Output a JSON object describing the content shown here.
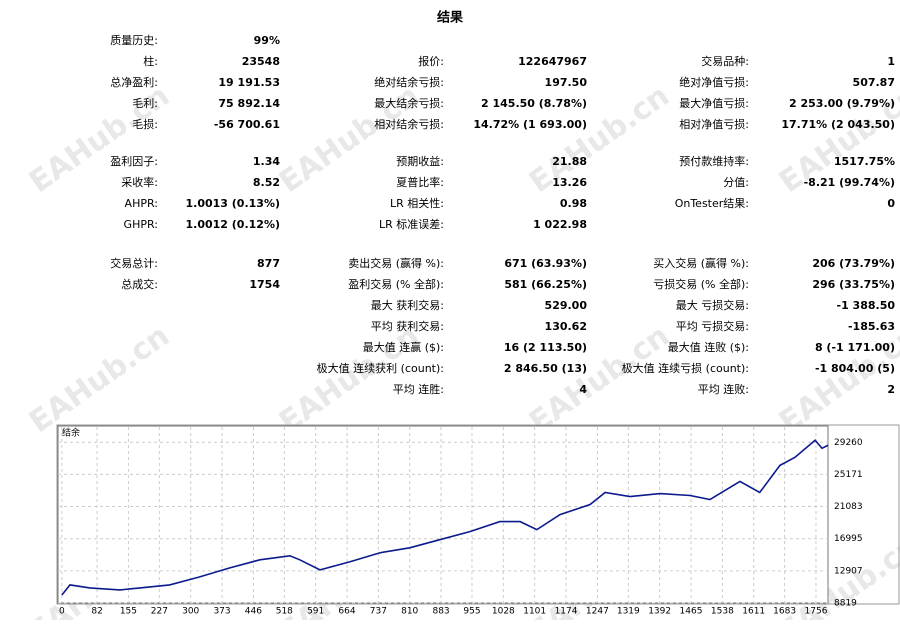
{
  "report": {
    "title": "结果",
    "watermark": "EAHub.cn",
    "sections": [
      {
        "rows": [
          [
            {
              "label": "质量历史:",
              "value": "99%"
            },
            null,
            null
          ],
          [
            {
              "label": "柱:",
              "value": "23548"
            },
            {
              "label": "报价:",
              "value": "122647967"
            },
            {
              "label": "交易品种:",
              "value": "1"
            }
          ],
          [
            {
              "label": "总净盈利:",
              "value": "19 191.53"
            },
            {
              "label": "绝对结余亏损:",
              "value": "197.50"
            },
            {
              "label": "绝对净值亏损:",
              "value": "507.87"
            }
          ],
          [
            {
              "label": "毛利:",
              "value": "75 892.14"
            },
            {
              "label": "最大结余亏损:",
              "value": "2 145.50 (8.78%)"
            },
            {
              "label": "最大净值亏损:",
              "value": "2 253.00 (9.79%)"
            }
          ],
          [
            {
              "label": "毛损:",
              "value": "-56 700.61"
            },
            {
              "label": "相对结余亏损:",
              "value": "14.72% (1 693.00)"
            },
            {
              "label": "相对净值亏损:",
              "value": "17.71% (2 043.50)"
            }
          ]
        ]
      },
      {
        "rows": [
          [
            {
              "label": "盈利因子:",
              "value": "1.34"
            },
            {
              "label": "预期收益:",
              "value": "21.88"
            },
            {
              "label": "预付款维持率:",
              "value": "1517.75%"
            }
          ],
          [
            {
              "label": "采收率:",
              "value": "8.52"
            },
            {
              "label": "夏普比率:",
              "value": "13.26"
            },
            {
              "label": "分值:",
              "value": "-8.21 (99.74%)"
            }
          ],
          [
            {
              "label": "AHPR:",
              "value": "1.0013 (0.13%)"
            },
            {
              "label": "LR 相关性:",
              "value": "0.98"
            },
            {
              "label": "OnTester结果:",
              "value": "0"
            }
          ],
          [
            {
              "label": "GHPR:",
              "value": "1.0012 (0.12%)"
            },
            {
              "label": "LR 标准误差:",
              "value": "1 022.98"
            },
            null
          ]
        ]
      },
      {
        "rows": [
          [
            {
              "label": "交易总计:",
              "value": "877"
            },
            {
              "label": "卖出交易 (赢得 %):",
              "value": "671 (63.93%)"
            },
            {
              "label": "买入交易 (赢得 %):",
              "value": "206 (73.79%)"
            }
          ],
          [
            {
              "label": "总成交:",
              "value": "1754"
            },
            {
              "label": "盈利交易 (% 全部):",
              "value": "581 (66.25%)"
            },
            {
              "label": "亏损交易 (% 全部):",
              "value": "296 (33.75%)"
            }
          ],
          [
            null,
            {
              "label": "最大 获利交易:",
              "value": "529.00"
            },
            {
              "label": "最大 亏损交易:",
              "value": "-1 388.50"
            }
          ],
          [
            null,
            {
              "label": "平均 获利交易:",
              "value": "130.62"
            },
            {
              "label": "平均 亏损交易:",
              "value": "-185.63"
            }
          ],
          [
            null,
            {
              "label": "最大值 连赢 ($):",
              "value": "16 (2 113.50)"
            },
            {
              "label": "最大值 连败 ($):",
              "value": "8 (-1 171.00)"
            }
          ],
          [
            null,
            {
              "label": "极大值 连续获利 (count):",
              "value": "2 846.50 (13)"
            },
            {
              "label": "极大值 连续亏损 (count):",
              "value": "-1 804.00 (5)"
            }
          ],
          [
            null,
            {
              "label": "平均 连胜:",
              "value": "4"
            },
            {
              "label": "平均 连败:",
              "value": "2"
            }
          ]
        ]
      }
    ]
  },
  "chart_data": {
    "type": "line",
    "title": "结余",
    "color": "#0b1a8c",
    "grid": true,
    "x": [
      0,
      19,
      65,
      135,
      182,
      251,
      321,
      391,
      461,
      531,
      554,
      601,
      671,
      741,
      810,
      880,
      950,
      1020,
      1067,
      1106,
      1160,
      1230,
      1265,
      1323,
      1393,
      1463,
      1509,
      1579,
      1625,
      1672,
      1707,
      1754,
      1770,
      1784
    ],
    "values": [
      9840,
      11120,
      10735,
      10480,
      10735,
      11120,
      12140,
      13290,
      14310,
      14820,
      14310,
      13030,
      14060,
      15210,
      15840,
      16870,
      17890,
      19170,
      19170,
      18150,
      20060,
      21340,
      22870,
      22360,
      22740,
      22490,
      21980,
      24280,
      22870,
      26320,
      27340,
      29520,
      28490,
      28880
    ],
    "xlim": [
      -9,
      1784
    ],
    "ylim": [
      8819,
      31200
    ],
    "xticks": [
      0,
      82,
      155,
      227,
      300,
      373,
      446,
      518,
      591,
      664,
      737,
      810,
      883,
      955,
      1028,
      1101,
      1174,
      1247,
      1319,
      1392,
      1465,
      1538,
      1611,
      1683,
      1756
    ],
    "yticks": [
      8819,
      12907,
      16995,
      21083,
      25171,
      29260
    ]
  }
}
